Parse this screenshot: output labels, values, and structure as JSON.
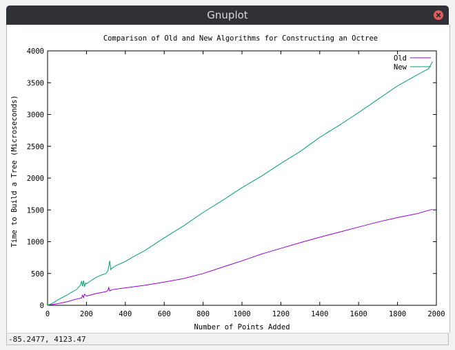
{
  "window": {
    "title": "Gnuplot"
  },
  "status": {
    "coords": "-85.2477,  4123.47"
  },
  "colors": {
    "old": "#9400d3",
    "new": "#009e73"
  },
  "chart_data": {
    "type": "line",
    "title": "Comparison of Old and New Algorithms for Constructing an Octree",
    "xlabel": "Number of Points Added",
    "ylabel": "Time to Build a Tree (Microseconds)",
    "xlim": [
      0,
      2000
    ],
    "ylim": [
      0,
      4000
    ],
    "xticks": [
      0,
      200,
      400,
      600,
      800,
      1000,
      1200,
      1400,
      1600,
      1800,
      2000
    ],
    "yticks": [
      0,
      500,
      1000,
      1500,
      2000,
      2500,
      3000,
      3500,
      4000
    ],
    "legend_position": "top-right",
    "series": [
      {
        "name": "Old",
        "color": "#9400d3",
        "x": [
          0,
          50,
          100,
          150,
          175,
          180,
          185,
          190,
          200,
          250,
          300,
          310,
          315,
          320,
          330,
          400,
          500,
          600,
          700,
          800,
          900,
          1000,
          1100,
          1200,
          1300,
          1400,
          1500,
          1600,
          1700,
          1800,
          1900,
          1980
        ],
        "y": [
          0,
          25,
          55,
          100,
          115,
          160,
          120,
          175,
          145,
          185,
          215,
          230,
          280,
          225,
          245,
          275,
          315,
          365,
          420,
          500,
          600,
          700,
          805,
          895,
          985,
          1070,
          1150,
          1230,
          1310,
          1380,
          1440,
          1510
        ]
      },
      {
        "name": "New",
        "color": "#009e73",
        "x": [
          0,
          30,
          50,
          80,
          100,
          120,
          150,
          170,
          175,
          180,
          185,
          190,
          195,
          200,
          230,
          250,
          280,
          300,
          310,
          315,
          320,
          325,
          330,
          350,
          400,
          450,
          500,
          600,
          700,
          800,
          900,
          1000,
          1100,
          1200,
          1300,
          1400,
          1500,
          1600,
          1700,
          1800,
          1900,
          1960,
          1980
        ],
        "y": [
          0,
          40,
          80,
          130,
          160,
          200,
          250,
          320,
          380,
          300,
          390,
          290,
          350,
          340,
          400,
          440,
          480,
          500,
          540,
          610,
          700,
          560,
          580,
          620,
          690,
          780,
          860,
          1060,
          1250,
          1460,
          1650,
          1850,
          2030,
          2230,
          2420,
          2640,
          2830,
          3030,
          3240,
          3450,
          3620,
          3720,
          3830
        ]
      }
    ]
  }
}
